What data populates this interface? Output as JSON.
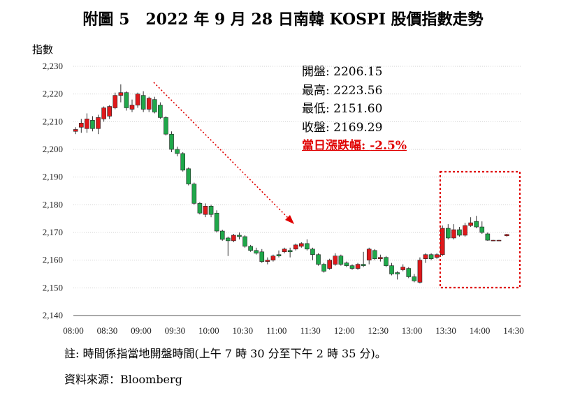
{
  "title": "附圖 5   2022 年 9 月 28 日南韓 KOSPI 股價指數走勢",
  "ylabel": "指數",
  "stats": [
    {
      "label": "開盤",
      "value": "2206.15"
    },
    {
      "label": "最高",
      "value": "2223.56"
    },
    {
      "label": "最低",
      "value": "2151.60"
    },
    {
      "label": "收盤",
      "value": "2169.29"
    }
  ],
  "change": {
    "label": "當日漲跌幅",
    "value": "-2.5%"
  },
  "note": "註: 時間係指當地開盤時間(上午 7 時 30 分至下午 2 時 35 分)。",
  "source": "資料來源：Bloomberg",
  "colors": {
    "up": "#e0181b",
    "down": "#1fa84a",
    "annotation": "#e00000",
    "grid": "#d0d0d0"
  },
  "chart_data": {
    "type": "candlestick",
    "ylim": [
      2140,
      2230
    ],
    "yticks": [
      "2,140",
      "2,150",
      "2,160",
      "2,170",
      "2,180",
      "2,190",
      "2,200",
      "2,210",
      "2,220",
      "2,230"
    ],
    "xticks": [
      "08:00",
      "08:30",
      "09:00",
      "09:30",
      "10:00",
      "10:30",
      "11:00",
      "11:30",
      "12:00",
      "12:30",
      "13:00",
      "13:30",
      "14:00",
      "14:30"
    ],
    "xlim_minutes": [
      0,
      390
    ],
    "grid": "horizontal dotted",
    "candles": [
      {
        "t": 2,
        "o": 2206.5,
        "c": 2207.2,
        "h": 2208,
        "l": 2205.5
      },
      {
        "t": 7,
        "o": 2208.0,
        "c": 2209.5,
        "h": 2211,
        "l": 2206
      },
      {
        "t": 12,
        "o": 2207.5,
        "c": 2211.0,
        "h": 2213,
        "l": 2206
      },
      {
        "t": 17,
        "o": 2210.5,
        "c": 2207.5,
        "h": 2212,
        "l": 2206.5
      },
      {
        "t": 22,
        "o": 2207.5,
        "c": 2211.5,
        "h": 2212.5,
        "l": 2205.5
      },
      {
        "t": 27,
        "o": 2211.0,
        "c": 2215.0,
        "h": 2215.5,
        "l": 2210
      },
      {
        "t": 32,
        "o": 2212.0,
        "c": 2215.5,
        "h": 2216,
        "l": 2211
      },
      {
        "t": 37,
        "o": 2215.0,
        "c": 2219.5,
        "h": 2220.5,
        "l": 2214.5
      },
      {
        "t": 42,
        "o": 2219.5,
        "c": 2220.5,
        "h": 2223.5,
        "l": 2217
      },
      {
        "t": 47,
        "o": 2220.5,
        "c": 2215.0,
        "h": 2221,
        "l": 2214
      },
      {
        "t": 52,
        "o": 2214.5,
        "c": 2216.0,
        "h": 2218,
        "l": 2213.5
      },
      {
        "t": 57,
        "o": 2216.0,
        "c": 2220.0,
        "h": 2220.5,
        "l": 2215
      },
      {
        "t": 62,
        "o": 2219.5,
        "c": 2214.5,
        "h": 2221,
        "l": 2213.5
      },
      {
        "t": 67,
        "o": 2214.5,
        "c": 2218.5,
        "h": 2219,
        "l": 2213.5
      },
      {
        "t": 72,
        "o": 2218.0,
        "c": 2213.5,
        "h": 2219,
        "l": 2213
      },
      {
        "t": 77,
        "o": 2216.0,
        "c": 2211.5,
        "h": 2217,
        "l": 2211
      },
      {
        "t": 82,
        "o": 2211.5,
        "c": 2205.5,
        "h": 2212,
        "l": 2205
      },
      {
        "t": 87,
        "o": 2205.5,
        "c": 2200.0,
        "h": 2206.5,
        "l": 2199
      },
      {
        "t": 92,
        "o": 2200.0,
        "c": 2198.5,
        "h": 2201,
        "l": 2197.5
      },
      {
        "t": 97,
        "o": 2198.5,
        "c": 2192.5,
        "h": 2199,
        "l": 2192
      },
      {
        "t": 102,
        "o": 2193.0,
        "c": 2187.5,
        "h": 2193.5,
        "l": 2187
      },
      {
        "t": 107,
        "o": 2187.5,
        "c": 2180.5,
        "h": 2188,
        "l": 2180
      },
      {
        "t": 112,
        "o": 2180.5,
        "c": 2177.0,
        "h": 2181,
        "l": 2176.5
      },
      {
        "t": 117,
        "o": 2176.5,
        "c": 2179.5,
        "h": 2180.5,
        "l": 2175.5
      },
      {
        "t": 122,
        "o": 2179.5,
        "c": 2176.5,
        "h": 2180,
        "l": 2175.5
      },
      {
        "t": 127,
        "o": 2177.0,
        "c": 2170.5,
        "h": 2178,
        "l": 2170
      },
      {
        "t": 132,
        "o": 2170.5,
        "c": 2167.5,
        "h": 2171,
        "l": 2167
      },
      {
        "t": 137,
        "o": 2168.0,
        "c": 2167.0,
        "h": 2168.5,
        "l": 2161.5
      },
      {
        "t": 142,
        "o": 2167.0,
        "c": 2169.0,
        "h": 2169.5,
        "l": 2166.5
      },
      {
        "t": 147,
        "o": 2169.0,
        "c": 2168.5,
        "h": 2170,
        "l": 2167.5
      },
      {
        "t": 152,
        "o": 2168.5,
        "c": 2165.0,
        "h": 2169,
        "l": 2164.5
      },
      {
        "t": 157,
        "o": 2165.0,
        "c": 2163.5,
        "h": 2165.5,
        "l": 2163
      },
      {
        "t": 162,
        "o": 2163.5,
        "c": 2162.5,
        "h": 2164.5,
        "l": 2162
      },
      {
        "t": 167,
        "o": 2163.0,
        "c": 2159.5,
        "h": 2164,
        "l": 2159
      },
      {
        "t": 172,
        "o": 2159.5,
        "c": 2160.0,
        "h": 2161,
        "l": 2158.5
      },
      {
        "t": 177,
        "o": 2160.0,
        "c": 2161.5,
        "h": 2162,
        "l": 2159.5
      },
      {
        "t": 182,
        "o": 2162.0,
        "c": 2161.5,
        "h": 2163.5,
        "l": 2161
      },
      {
        "t": 187,
        "o": 2163.0,
        "c": 2164.0,
        "h": 2164.5,
        "l": 2162.5
      },
      {
        "t": 192,
        "o": 2163.5,
        "c": 2163.0,
        "h": 2164.5,
        "l": 2161
      },
      {
        "t": 197,
        "o": 2164.0,
        "c": 2165.5,
        "h": 2166,
        "l": 2163.5
      },
      {
        "t": 202,
        "o": 2165.0,
        "c": 2166.0,
        "h": 2166.5,
        "l": 2164.5
      },
      {
        "t": 207,
        "o": 2166.0,
        "c": 2164.0,
        "h": 2167.5,
        "l": 2163.5
      },
      {
        "t": 212,
        "o": 2164.0,
        "c": 2162.0,
        "h": 2164.5,
        "l": 2160
      },
      {
        "t": 217,
        "o": 2162.0,
        "c": 2158.5,
        "h": 2162.5,
        "l": 2158
      },
      {
        "t": 222,
        "o": 2158.5,
        "c": 2156.0,
        "h": 2159,
        "l": 2155.5
      },
      {
        "t": 227,
        "o": 2157.0,
        "c": 2160.0,
        "h": 2160.5,
        "l": 2156.5
      },
      {
        "t": 232,
        "o": 2158.5,
        "c": 2161.5,
        "h": 2162.5,
        "l": 2158
      },
      {
        "t": 237,
        "o": 2161.5,
        "c": 2158.5,
        "h": 2162,
        "l": 2158
      },
      {
        "t": 242,
        "o": 2159.0,
        "c": 2158.0,
        "h": 2159.5,
        "l": 2157.5
      },
      {
        "t": 247,
        "o": 2158.0,
        "c": 2157.0,
        "h": 2158.5,
        "l": 2156.5
      },
      {
        "t": 252,
        "o": 2157.0,
        "c": 2158.5,
        "h": 2159,
        "l": 2156.5
      },
      {
        "t": 257,
        "o": 2158.5,
        "c": 2158.0,
        "h": 2163,
        "l": 2157.5
      },
      {
        "t": 262,
        "o": 2160.0,
        "c": 2164.0,
        "h": 2164.5,
        "l": 2158.5
      },
      {
        "t": 267,
        "o": 2163.5,
        "c": 2160.5,
        "h": 2164,
        "l": 2160
      },
      {
        "t": 272,
        "o": 2160.5,
        "c": 2161.0,
        "h": 2162,
        "l": 2159.5
      },
      {
        "t": 277,
        "o": 2161.0,
        "c": 2158.0,
        "h": 2161.5,
        "l": 2157.5
      },
      {
        "t": 282,
        "o": 2158.0,
        "c": 2155.0,
        "h": 2159,
        "l": 2154.5
      },
      {
        "t": 287,
        "o": 2155.5,
        "c": 2155.0,
        "h": 2156,
        "l": 2153
      },
      {
        "t": 292,
        "o": 2156.5,
        "c": 2157.5,
        "h": 2158.5,
        "l": 2156
      },
      {
        "t": 297,
        "o": 2157.0,
        "c": 2154.0,
        "h": 2157.5,
        "l": 2153.5
      },
      {
        "t": 302,
        "o": 2154.0,
        "c": 2152.5,
        "h": 2155,
        "l": 2152
      },
      {
        "t": 307,
        "o": 2152.0,
        "c": 2160.0,
        "h": 2161,
        "l": 2151.6
      },
      {
        "t": 312,
        "o": 2160.5,
        "c": 2162.0,
        "h": 2162.5,
        "l": 2159
      },
      {
        "t": 317,
        "o": 2162.0,
        "c": 2160.5,
        "h": 2162.5,
        "l": 2160
      },
      {
        "t": 322,
        "o": 2161.0,
        "c": 2162.0,
        "h": 2162.5,
        "l": 2160.5
      },
      {
        "t": 327,
        "o": 2162.0,
        "c": 2171.5,
        "h": 2172.5,
        "l": 2161.5
      },
      {
        "t": 332,
        "o": 2171.5,
        "c": 2168.0,
        "h": 2173,
        "l": 2167.5
      },
      {
        "t": 337,
        "o": 2168.0,
        "c": 2171.0,
        "h": 2173,
        "l": 2167.5
      },
      {
        "t": 342,
        "o": 2171.0,
        "c": 2169.0,
        "h": 2172,
        "l": 2168.5
      },
      {
        "t": 347,
        "o": 2169.0,
        "c": 2172.5,
        "h": 2173.5,
        "l": 2168.5
      },
      {
        "t": 352,
        "o": 2172.5,
        "c": 2173.5,
        "h": 2175.5,
        "l": 2172
      },
      {
        "t": 357,
        "o": 2174.0,
        "c": 2172.0,
        "h": 2176,
        "l": 2171.5
      },
      {
        "t": 362,
        "o": 2172.0,
        "c": 2170.0,
        "h": 2174,
        "l": 2169.5
      },
      {
        "t": 367,
        "o": 2169.5,
        "c": 2167.2,
        "h": 2170,
        "l": 2167
      },
      {
        "t": 372,
        "o": 2167.2,
        "c": 2167.2,
        "h": 2167.3,
        "l": 2167.1
      },
      {
        "t": 377,
        "o": 2167.2,
        "c": 2167.2,
        "h": 2167.3,
        "l": 2167.1
      },
      {
        "t": 384,
        "o": 2168.8,
        "c": 2169.29,
        "h": 2169.5,
        "l": 2168.5
      }
    ]
  }
}
